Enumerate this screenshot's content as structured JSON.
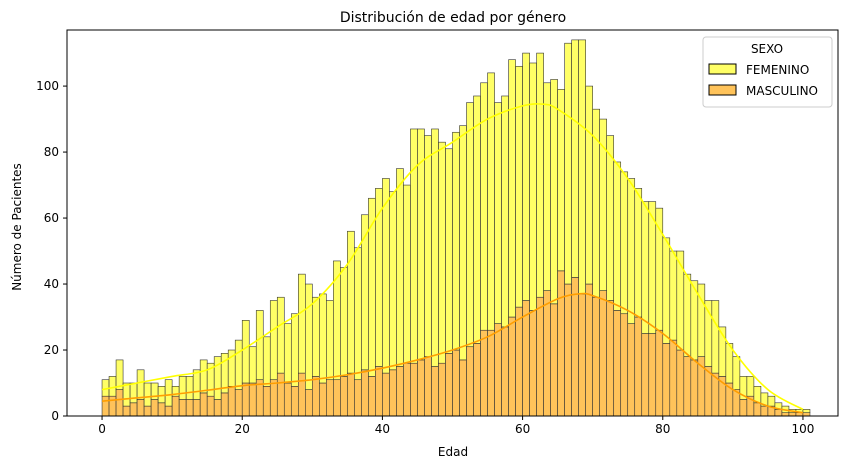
{
  "chart_data": {
    "type": "histogram",
    "title": "Distribución de edad por género",
    "xlabel": "Edad",
    "ylabel": "Número de Pacientes",
    "xlim": [
      -5,
      105
    ],
    "ylim": [
      0,
      117
    ],
    "xticks": [
      0,
      20,
      40,
      60,
      80,
      100
    ],
    "yticks": [
      0,
      20,
      40,
      60,
      80,
      100
    ],
    "grid": false,
    "legend": {
      "title": "SEXO",
      "placement": "top-right"
    },
    "multiple": "stack",
    "bin_start": 0,
    "bin_width": 1,
    "series": [
      {
        "name": "MASCULINO",
        "color": "#ffc35a",
        "kde_color": "#ff9e00",
        "values": [
          6,
          6,
          8,
          3,
          4,
          5,
          3,
          5,
          4,
          3,
          6,
          5,
          5,
          5,
          7,
          6,
          5,
          7,
          9,
          8,
          10,
          10,
          11,
          9,
          11,
          13,
          10,
          9,
          13,
          8,
          12,
          10,
          11,
          11,
          12,
          13,
          11,
          14,
          12,
          15,
          13,
          14,
          15,
          16,
          16,
          17,
          18,
          15,
          16,
          19,
          20,
          17,
          21,
          22,
          26,
          26,
          28,
          27,
          30,
          33,
          35,
          32,
          36,
          38,
          34,
          44,
          40,
          42,
          37,
          40,
          36,
          38,
          35,
          32,
          31,
          28,
          30,
          25,
          25,
          26,
          22,
          23,
          20,
          18,
          17,
          18,
          15,
          13,
          12,
          10,
          8,
          5,
          6,
          4,
          3,
          3,
          2,
          1,
          1,
          1,
          1
        ],
        "kde": [
          [
            0,
            4.5
          ],
          [
            5,
            5.5
          ],
          [
            10,
            6.5
          ],
          [
            15,
            7.8
          ],
          [
            20,
            9.2
          ],
          [
            25,
            10
          ],
          [
            30,
            11
          ],
          [
            35,
            12.5
          ],
          [
            40,
            14.5
          ],
          [
            45,
            17
          ],
          [
            50,
            20
          ],
          [
            55,
            24
          ],
          [
            60,
            30
          ],
          [
            65,
            35.5
          ],
          [
            68,
            37
          ],
          [
            70,
            36.5
          ],
          [
            75,
            32
          ],
          [
            80,
            25
          ],
          [
            85,
            16
          ],
          [
            90,
            8
          ],
          [
            95,
            3
          ],
          [
            100,
            1
          ]
        ]
      },
      {
        "name": "FEMENINO",
        "color": "#ffff66",
        "kde_color": "#ffff00",
        "values": [
          5,
          6,
          9,
          7,
          6,
          9,
          7,
          5,
          5,
          8,
          3,
          7,
          7,
          9,
          10,
          10,
          13,
          12,
          11,
          15,
          19,
          11,
          21,
          15,
          24,
          23,
          18,
          22,
          30,
          32,
          24,
          27,
          24,
          36,
          33,
          43,
          40,
          47,
          54,
          54,
          59,
          54,
          60,
          54,
          71,
          70,
          67,
          72,
          67,
          62,
          66,
          71,
          74,
          75,
          75,
          78,
          67,
          70,
          78,
          73,
          75,
          75,
          74,
          63,
          68,
          55,
          73,
          72,
          77,
          60,
          57,
          52,
          50,
          45,
          43,
          44,
          39,
          40,
          40,
          37,
          32,
          27,
          30,
          25,
          24,
          22,
          20,
          22,
          15,
          12,
          10,
          7,
          6,
          5,
          4,
          3,
          2,
          2,
          1,
          1,
          1
        ],
        "kde": [
          [
            0,
            8
          ],
          [
            5,
            10
          ],
          [
            10,
            12
          ],
          [
            15,
            14
          ],
          [
            20,
            20
          ],
          [
            25,
            27
          ],
          [
            30,
            34
          ],
          [
            35,
            46
          ],
          [
            40,
            63
          ],
          [
            45,
            76
          ],
          [
            50,
            83
          ],
          [
            55,
            90
          ],
          [
            60,
            94
          ],
          [
            63,
            94.5
          ],
          [
            65,
            93
          ],
          [
            70,
            85
          ],
          [
            75,
            72
          ],
          [
            80,
            55
          ],
          [
            85,
            37
          ],
          [
            90,
            20
          ],
          [
            95,
            8
          ],
          [
            100,
            2
          ]
        ]
      }
    ]
  }
}
